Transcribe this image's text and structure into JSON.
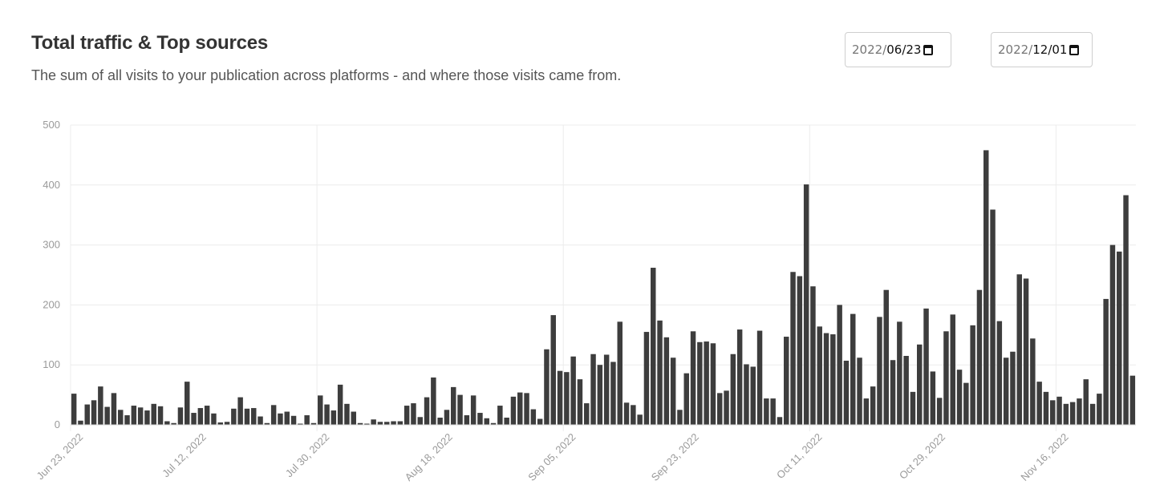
{
  "header": {
    "title": "Total traffic & Top sources",
    "subtitle": "The sum of all visits to your publication across platforms - and where those visits came from."
  },
  "date_range": {
    "from_year": "2022/",
    "from_rest": "06/23",
    "to_year": "2022/",
    "to_rest": "12/01",
    "icon": "calendar-icon"
  },
  "colors": {
    "bar": "#3d3d3d",
    "grid": "#ececec",
    "tick_text": "#9a9a9a"
  },
  "chart_data": {
    "type": "bar",
    "title": "",
    "xlabel": "",
    "ylabel": "",
    "ylim": [
      0,
      500
    ],
    "y_ticks": [
      "0",
      "100",
      "200",
      "300",
      "400",
      "500"
    ],
    "x_tick_labels": [
      "Jun 23, 2022",
      "Jul 12, 2022",
      "Jul 30, 2022",
      "Aug 18, 2022",
      "Sep 05, 2022",
      "Sep 23, 2022",
      "Oct 11, 2022",
      "Oct 29, 2022",
      "Nov 16, 2022"
    ],
    "grid": true,
    "legend": "none",
    "start_date": "2022-06-23",
    "end_date": "2022-12-01",
    "values": [
      52,
      7,
      34,
      41,
      64,
      30,
      53,
      25,
      16,
      32,
      29,
      24,
      35,
      31,
      6,
      3,
      29,
      72,
      20,
      28,
      32,
      19,
      4,
      5,
      27,
      46,
      27,
      28,
      14,
      3,
      33,
      19,
      22,
      15,
      2,
      16,
      3,
      49,
      34,
      24,
      67,
      35,
      22,
      3,
      2,
      9,
      5,
      5,
      6,
      6,
      32,
      36,
      13,
      46,
      79,
      12,
      25,
      63,
      50,
      16,
      49,
      20,
      11,
      3,
      32,
      12,
      47,
      54,
      53,
      26,
      10,
      126,
      183,
      90,
      88,
      114,
      76,
      36,
      118,
      100,
      117,
      105,
      172,
      37,
      33,
      17,
      155,
      262,
      174,
      146,
      112,
      25,
      86,
      156,
      138,
      139,
      136,
      53,
      57,
      118,
      159,
      101,
      97,
      157,
      44,
      44,
      13,
      147,
      255,
      248,
      401,
      231,
      164,
      153,
      151,
      200,
      107,
      185,
      112,
      44,
      64,
      180,
      225,
      108,
      172,
      115,
      55,
      134,
      194,
      89,
      45,
      156,
      184,
      92,
      70,
      166,
      225,
      458,
      359,
      173,
      112,
      122,
      251,
      244,
      144,
      72,
      55,
      41,
      47,
      35,
      38,
      44,
      76,
      35,
      52,
      210,
      300,
      289,
      383,
      82
    ]
  }
}
